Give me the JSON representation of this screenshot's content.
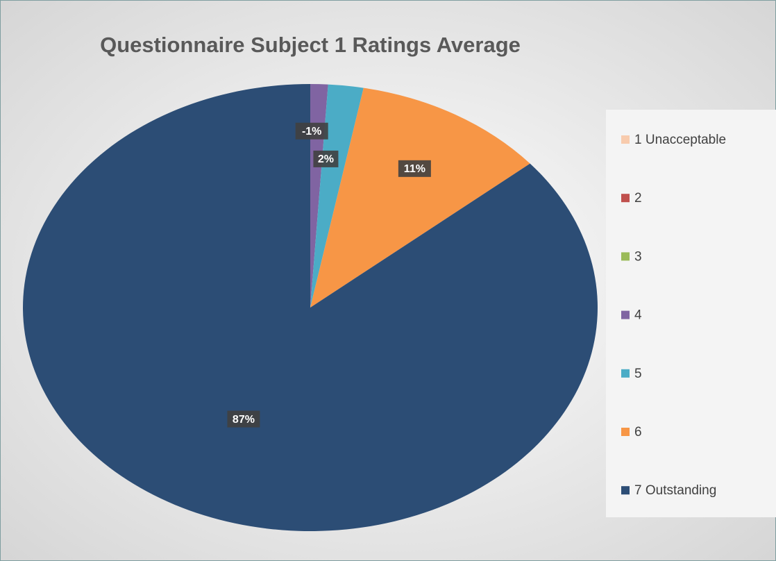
{
  "chart_data": {
    "type": "pie",
    "title": "Questionnaire Subject 1 Ratings Average",
    "categories": [
      "1 Unacceptable",
      "2",
      "3",
      "4",
      "5",
      "6",
      "7 Outstanding"
    ],
    "values": [
      0,
      0,
      0,
      -1,
      2,
      11,
      87
    ],
    "value_labels": [
      null,
      null,
      null,
      "-1%",
      "2%",
      "11%",
      "87%"
    ],
    "colors": [
      "#f8cbad",
      "#c0504d",
      "#9bbb59",
      "#8064a2",
      "#4bacc6",
      "#f79646",
      "#2c4d75"
    ],
    "legend": "right"
  }
}
